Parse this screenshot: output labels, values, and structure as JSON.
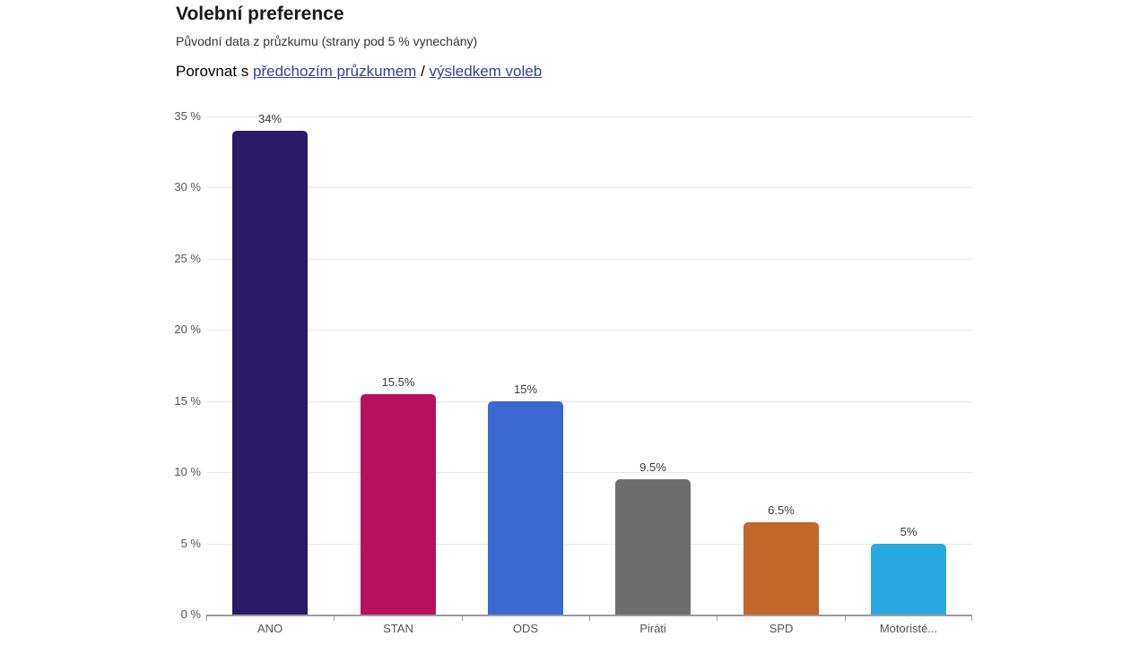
{
  "header": {
    "title": "Volební preference",
    "subtitle": "Původní data z průzkumu (strany pod 5 % vynechány)",
    "compare": {
      "prefix": "Porovnat s ",
      "link_previous_survey": "předchozím průzkumem",
      "separator": " / ",
      "link_election_results": "výsledkem voleb"
    }
  },
  "colors": {
    "link": "#333f9c",
    "grid": "#e7e7e7",
    "axis": "#9a9a9a",
    "axis_tick": "#9a9a9a",
    "y_label": "#555555",
    "x_label": "#555555",
    "value_label": "#3a3a3a",
    "title": "#1a1a1a",
    "subtitle": "#333333"
  },
  "chart_data": {
    "type": "bar",
    "title": "Volební preference",
    "subtitle": "Původní data z průzkumu (strany pod 5 % vynechány)",
    "categories": [
      "ANO",
      "STAN",
      "ODS",
      "Piráti",
      "SPD",
      "Motoristé..."
    ],
    "values": [
      34,
      15.5,
      15,
      9.5,
      6.5,
      5
    ],
    "value_labels": [
      "34%",
      "15.5%",
      "15%",
      "9.5%",
      "6.5%",
      "5%"
    ],
    "bar_colors": [
      "#2a1a68",
      "#b8115c",
      "#3a67d0",
      "#6e6e6e",
      "#c2662b",
      "#28a8e0"
    ],
    "xlabel": "",
    "ylabel": "",
    "ylim": [
      0,
      35
    ],
    "ytick_step": 5,
    "ytick_labels": [
      "0 %",
      "5 %",
      "10 %",
      "15 %",
      "20 %",
      "25 %",
      "30 %",
      "35 %"
    ],
    "grid": true,
    "legend": false
  }
}
